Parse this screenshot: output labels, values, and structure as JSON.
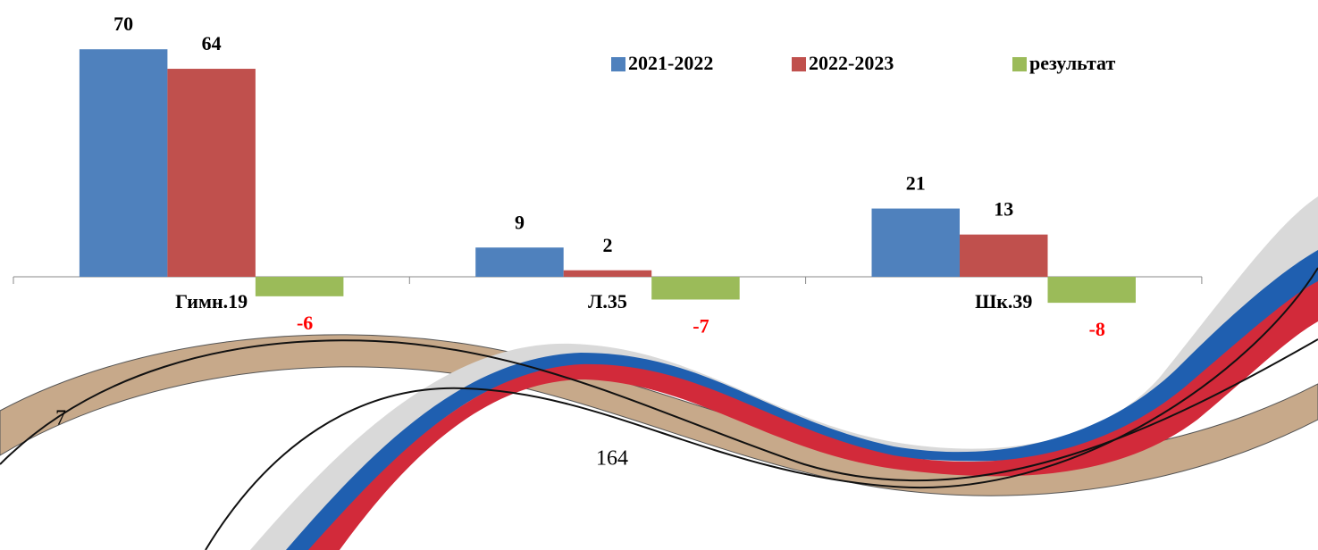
{
  "chart_data": {
    "type": "bar",
    "categories": [
      "Гимн.19",
      "Л.35",
      "Шк.39"
    ],
    "series": [
      {
        "name": "2021-2022",
        "color": "#4f81bd",
        "label_color": "#000000",
        "values": [
          70,
          9,
          21
        ]
      },
      {
        "name": "2022-2023",
        "color": "#c0504d",
        "label_color": "#000000",
        "values": [
          64,
          2,
          13
        ]
      },
      {
        "name": "результат",
        "color": "#9bbb59",
        "label_color": "#ff0000",
        "values": [
          -6,
          -7,
          -8
        ]
      }
    ],
    "legend": "top-right",
    "annotations": [
      "7",
      "164"
    ]
  }
}
